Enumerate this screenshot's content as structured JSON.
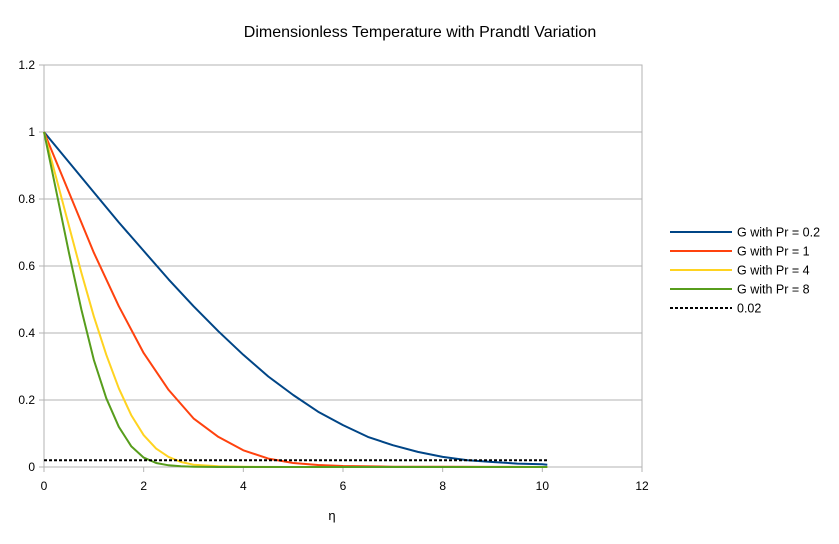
{
  "chart_data": {
    "type": "line",
    "title": "Dimensionless Temperature with Prandtl Variation",
    "xlabel": "η",
    "ylabel": "",
    "xlim": [
      0,
      12
    ],
    "ylim": [
      0,
      1.2
    ],
    "xticks": [
      0,
      2,
      4,
      6,
      8,
      10,
      12
    ],
    "yticks": [
      0,
      0.2,
      0.4,
      0.6,
      0.8,
      1,
      1.2
    ],
    "xtick_labels": [
      "0",
      "2",
      "4",
      "6",
      "8",
      "10",
      "12"
    ],
    "ytick_labels": [
      "0",
      "0.2",
      "0.4",
      "0.6",
      "0.8",
      "1",
      "1.2"
    ],
    "grid": "horizontal",
    "legend_position": "right",
    "series": [
      {
        "name": "G with Pr = 0.2",
        "color": "#004586",
        "style": "solid",
        "x": [
          0,
          0.5,
          1,
          1.5,
          2,
          2.5,
          3,
          3.5,
          4,
          4.5,
          5,
          5.5,
          6,
          6.5,
          7,
          7.5,
          8,
          8.5,
          9,
          9.5,
          10,
          10.1
        ],
        "y": [
          1.0,
          0.91,
          0.82,
          0.73,
          0.645,
          0.56,
          0.48,
          0.405,
          0.335,
          0.27,
          0.215,
          0.165,
          0.125,
          0.09,
          0.065,
          0.045,
          0.03,
          0.02,
          0.015,
          0.01,
          0.008,
          0.007
        ]
      },
      {
        "name": "G with Pr = 1",
        "color": "#ff420e",
        "style": "solid",
        "x": [
          0,
          0.5,
          1,
          1.5,
          2,
          2.5,
          3,
          3.5,
          4,
          4.5,
          5,
          5.5,
          6,
          7,
          8,
          9,
          10,
          10.1
        ],
        "y": [
          1.0,
          0.82,
          0.64,
          0.48,
          0.34,
          0.23,
          0.145,
          0.09,
          0.05,
          0.025,
          0.012,
          0.006,
          0.003,
          0.001,
          0.0005,
          0.0002,
          0.0001,
          0.0001
        ]
      },
      {
        "name": "G with Pr = 4",
        "color": "#ffd320",
        "style": "solid",
        "x": [
          0,
          0.25,
          0.5,
          0.75,
          1,
          1.25,
          1.5,
          1.75,
          2,
          2.25,
          2.5,
          2.75,
          3,
          3.5,
          4,
          5,
          6,
          8,
          10,
          10.1
        ],
        "y": [
          1.0,
          0.86,
          0.72,
          0.58,
          0.45,
          0.335,
          0.235,
          0.155,
          0.095,
          0.055,
          0.03,
          0.015,
          0.007,
          0.002,
          0.0005,
          0.0001,
          0.0,
          0.0,
          0.0,
          0.0
        ]
      },
      {
        "name": "G with Pr = 8",
        "color": "#579d1c",
        "style": "solid",
        "x": [
          0,
          0.25,
          0.5,
          0.75,
          1,
          1.25,
          1.5,
          1.75,
          2,
          2.25,
          2.5,
          2.75,
          3,
          3.5,
          4,
          5,
          6,
          8,
          10,
          10.1
        ],
        "y": [
          1.0,
          0.82,
          0.64,
          0.47,
          0.32,
          0.205,
          0.12,
          0.062,
          0.028,
          0.012,
          0.005,
          0.002,
          0.001,
          0.0,
          0.0,
          0.0,
          0.0,
          0.0,
          0.0,
          0.0
        ]
      },
      {
        "name": "0.02",
        "color": "#000000",
        "style": "dotted",
        "x": [
          0,
          10.1
        ],
        "y": [
          0.02,
          0.02
        ]
      }
    ]
  }
}
